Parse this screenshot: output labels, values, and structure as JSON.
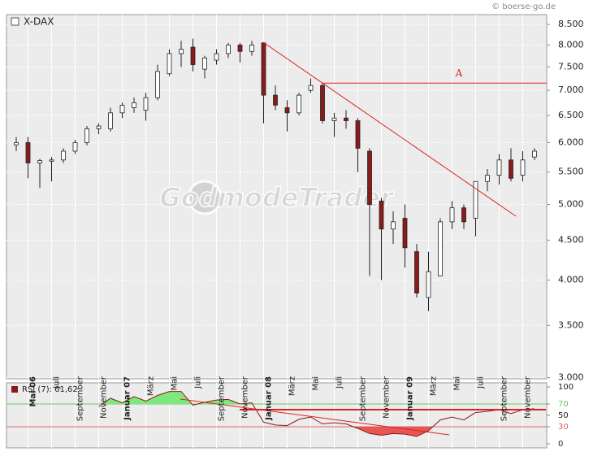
{
  "chart_data": [
    {
      "type": "candlestick",
      "title": "X-DAX",
      "source": "© boerse-go.de",
      "watermark": "GodmodeTrader",
      "log_scale": true,
      "grid": true,
      "up_color": "#ffffff",
      "down_color": "#8b1a1a",
      "categories": [
        null,
        "Mai 06",
        null,
        "Juli",
        null,
        "September",
        null,
        "November",
        null,
        "Januar 07",
        null,
        "März",
        null,
        "Mai",
        null,
        "Juli",
        null,
        "September",
        null,
        "November",
        null,
        "Januar 08",
        null,
        "März",
        null,
        "Mai",
        null,
        "Juli",
        null,
        "September",
        null,
        "November",
        null,
        "Januar 09",
        null,
        "März",
        null,
        "Mai",
        null,
        "Juli",
        null,
        "September",
        null,
        "November",
        null
      ],
      "open": [
        5960,
        6000,
        5650,
        5680,
        5700,
        5850,
        6000,
        6250,
        6250,
        6550,
        6650,
        6600,
        6850,
        7350,
        7800,
        7950,
        7450,
        7650,
        7800,
        8000,
        7850,
        8050,
        6900,
        6650,
        6550,
        7000,
        7100,
        6400,
        6450,
        6400,
        5850,
        5050,
        4650,
        4800,
        4350,
        3800,
        4050,
        4750,
        4950,
        4800,
        5350,
        5450,
        5700,
        5450,
        5750
      ],
      "high": [
        6100,
        6100,
        5720,
        5750,
        5900,
        6050,
        6300,
        6350,
        6650,
        6750,
        6850,
        6950,
        7550,
        7900,
        8100,
        8150,
        7750,
        7900,
        8050,
        8050,
        8100,
        8050,
        7100,
        6800,
        6950,
        7250,
        7150,
        6550,
        6600,
        6450,
        5900,
        5100,
        4900,
        5000,
        4450,
        4350,
        4800,
        5050,
        5000,
        5350,
        5550,
        5800,
        5900,
        5850,
        5900
      ],
      "low": [
        5850,
        5400,
        5250,
        5350,
        5650,
        5800,
        5950,
        6150,
        6200,
        6450,
        6550,
        6400,
        6800,
        7300,
        7500,
        7400,
        7250,
        7550,
        7700,
        7600,
        7750,
        6350,
        6600,
        6200,
        6500,
        6950,
        6350,
        6100,
        6250,
        5500,
        4050,
        4000,
        4450,
        4150,
        3800,
        3650,
        4050,
        4650,
        4650,
        4550,
        5200,
        5300,
        5350,
        5350,
        5700
      ],
      "close": [
        6000,
        5650,
        5690,
        5700,
        5850,
        6000,
        6250,
        6300,
        6550,
        6700,
        6750,
        6850,
        7400,
        7800,
        7900,
        7550,
        7700,
        7800,
        8000,
        7850,
        8000,
        6900,
        6700,
        6550,
        6900,
        7100,
        6400,
        6450,
        6400,
        5900,
        5000,
        4650,
        4750,
        4400,
        3850,
        4100,
        4750,
        4950,
        4750,
        5350,
        5450,
        5700,
        5400,
        5700,
        5850
      ],
      "ylim": [
        2990,
        8750
      ],
      "yticks": [
        {
          "value": 3000,
          "label": "3.000"
        },
        {
          "value": 3500,
          "label": "3.500"
        },
        {
          "value": 4000,
          "label": "4.000"
        },
        {
          "value": 4500,
          "label": "4.500"
        },
        {
          "value": 5000,
          "label": "5.000"
        },
        {
          "value": 5500,
          "label": "5.500"
        },
        {
          "value": 6000,
          "label": "6.000"
        },
        {
          "value": 6500,
          "label": "6.500"
        },
        {
          "value": 7000,
          "label": "7.000"
        },
        {
          "value": 7500,
          "label": "7.500"
        },
        {
          "value": 8000,
          "label": "8.000"
        },
        {
          "value": 8500,
          "label": "8.500"
        }
      ],
      "annotation": {
        "text": "A",
        "value": 7150,
        "color": "#dd2222"
      }
    },
    {
      "type": "line",
      "name": "RSI (7): 61,62",
      "color": "#8b1a1a",
      "values": [
        null,
        null,
        null,
        null,
        null,
        null,
        null,
        65,
        80,
        72,
        83,
        75,
        85,
        92,
        92,
        68,
        73,
        77,
        78,
        70,
        72,
        38,
        33,
        32,
        43,
        47,
        35,
        37,
        35,
        27,
        18,
        15,
        18,
        17,
        13,
        23,
        42,
        47,
        42,
        55,
        57,
        60,
        53,
        60,
        61.62
      ],
      "ylim": [
        0,
        100
      ],
      "yticks": [
        0,
        30,
        50,
        70,
        100
      ],
      "levels": [
        {
          "value": 70,
          "color": "#66cc66",
          "fill": "#7ee87e"
        },
        {
          "value": 30,
          "color": "#dd6666",
          "fill": "#e85555"
        }
      ]
    }
  ]
}
